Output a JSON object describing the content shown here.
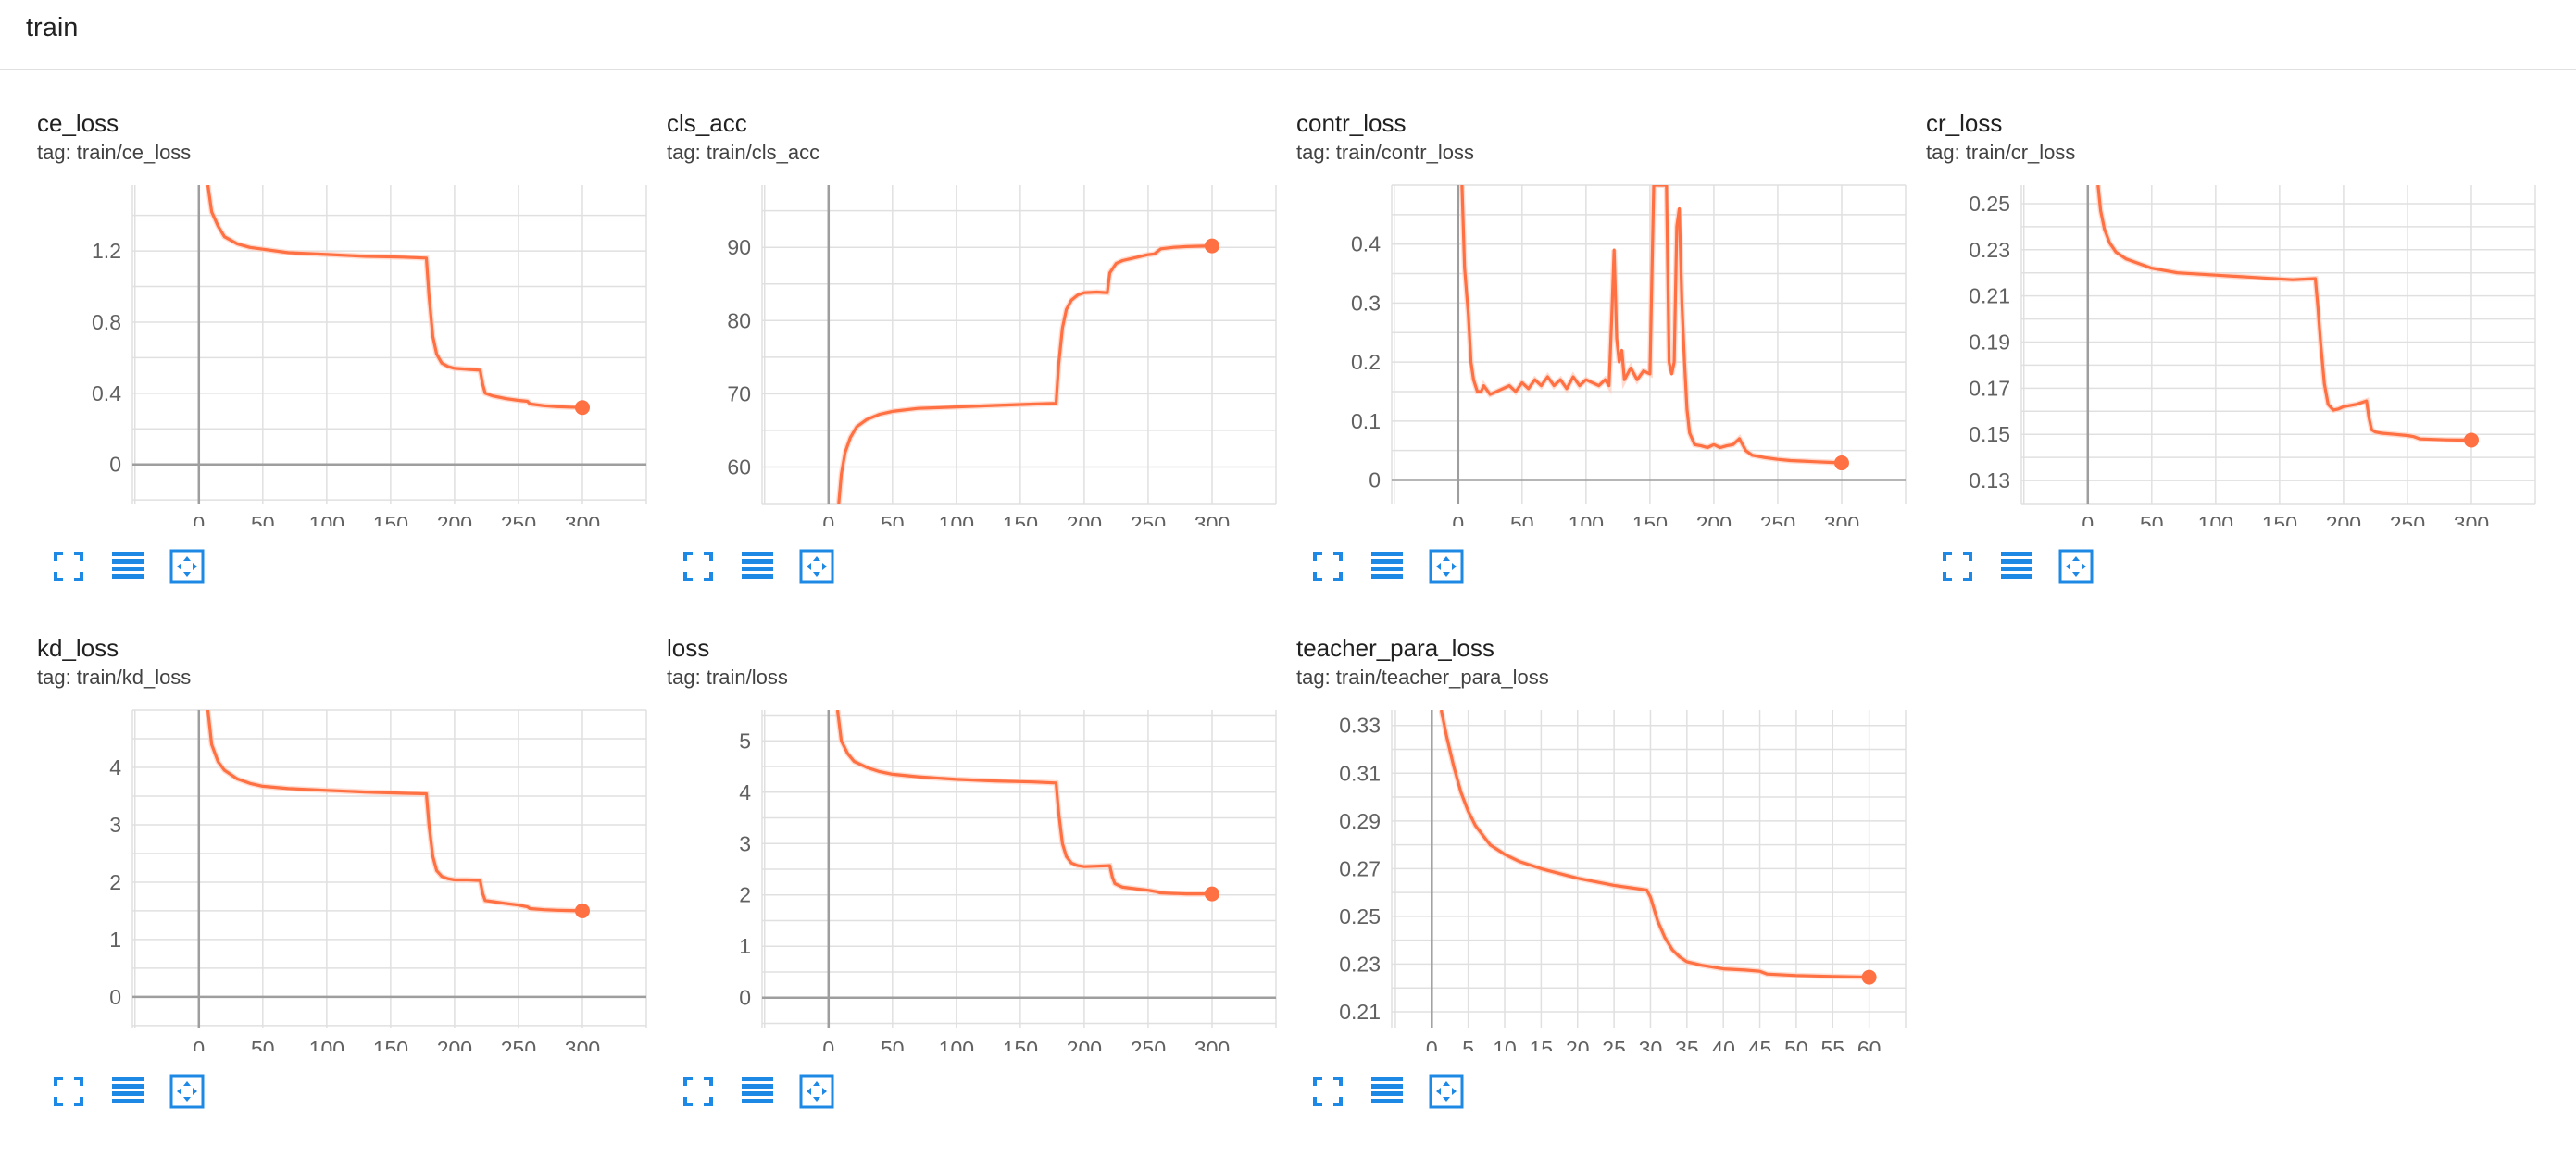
{
  "group": {
    "title": "train"
  },
  "colors": {
    "line": "#ff7043",
    "line_raw": "#ffccbc",
    "grid": "#e0e0e0",
    "axis": "#9e9e9e",
    "icon": "#1e88e5"
  },
  "icons": [
    "fullscreen-icon",
    "toggle-log-icon",
    "fit-domain-icon"
  ],
  "chart_data": [
    {
      "type": "line",
      "title": "ce_loss",
      "tag": "tag: train/ce_loss",
      "xlim": [
        -52,
        350
      ],
      "ylim": [
        -0.22,
        1.57
      ],
      "xticks": [
        0,
        50,
        100,
        150,
        200,
        250,
        300
      ],
      "yticks": [
        0,
        0.4,
        0.8,
        1.2
      ],
      "series": [
        {
          "x": [
            7,
            10,
            15,
            20,
            30,
            40,
            50,
            70,
            100,
            130,
            160,
            178,
            180,
            183,
            186,
            190,
            195,
            200,
            210,
            220,
            222,
            224,
            230,
            240,
            250,
            257,
            259,
            270,
            280,
            290,
            300
          ],
          "y": [
            1.57,
            1.42,
            1.34,
            1.28,
            1.24,
            1.22,
            1.21,
            1.19,
            1.18,
            1.17,
            1.165,
            1.16,
            0.95,
            0.72,
            0.62,
            0.57,
            0.55,
            0.54,
            0.535,
            0.53,
            0.45,
            0.4,
            0.385,
            0.37,
            0.36,
            0.355,
            0.34,
            0.33,
            0.325,
            0.322,
            0.32
          ]
        }
      ]
    },
    {
      "type": "line",
      "title": "cls_acc",
      "tag": "tag: train/cls_acc",
      "xlim": [
        -52,
        350
      ],
      "ylim": [
        55,
        98.5
      ],
      "xticks": [
        0,
        50,
        100,
        150,
        200,
        250,
        300
      ],
      "yticks": [
        60,
        70,
        80,
        90
      ],
      "series": [
        {
          "x": [
            8,
            10,
            13,
            17,
            22,
            30,
            40,
            50,
            70,
            100,
            130,
            160,
            178,
            180,
            183,
            186,
            190,
            195,
            200,
            210,
            218,
            220,
            225,
            230,
            240,
            250,
            255,
            260,
            270,
            280,
            290,
            300
          ],
          "y": [
            55,
            59,
            62,
            64,
            65.5,
            66.5,
            67.2,
            67.6,
            68,
            68.2,
            68.4,
            68.6,
            68.7,
            74,
            79,
            81.5,
            82.8,
            83.5,
            83.8,
            83.9,
            83.8,
            86.5,
            87.8,
            88.2,
            88.6,
            89,
            89.1,
            89.8,
            90,
            90.1,
            90.15,
            90.2
          ]
        }
      ]
    },
    {
      "type": "line",
      "title": "contr_loss",
      "tag": "tag: train/contr_loss",
      "xlim": [
        -52,
        350
      ],
      "ylim": [
        -0.04,
        0.5
      ],
      "xticks": [
        0,
        50,
        100,
        150,
        200,
        250,
        300
      ],
      "yticks": [
        0,
        0.1,
        0.2,
        0.3,
        0.4
      ],
      "series": [
        {
          "x": [
            3,
            5,
            8,
            10,
            12,
            15,
            18,
            20,
            25,
            30,
            35,
            40,
            45,
            50,
            55,
            60,
            65,
            70,
            75,
            80,
            85,
            90,
            95,
            100,
            105,
            110,
            115,
            118,
            120,
            122,
            124,
            126,
            128,
            130,
            135,
            140,
            145,
            150,
            153,
            155,
            157,
            159,
            161,
            163,
            165,
            167,
            169,
            171,
            173,
            175,
            177,
            179,
            181,
            183,
            185,
            190,
            195,
            200,
            205,
            210,
            215,
            220,
            225,
            230,
            240,
            250,
            260,
            270,
            280,
            290,
            300
          ],
          "y": [
            0.5,
            0.36,
            0.28,
            0.2,
            0.17,
            0.15,
            0.15,
            0.16,
            0.145,
            0.15,
            0.155,
            0.16,
            0.15,
            0.165,
            0.155,
            0.17,
            0.16,
            0.175,
            0.16,
            0.17,
            0.155,
            0.175,
            0.16,
            0.17,
            0.165,
            0.16,
            0.17,
            0.16,
            0.27,
            0.39,
            0.24,
            0.2,
            0.22,
            0.17,
            0.19,
            0.17,
            0.185,
            0.18,
            0.5,
            0.5,
            0.5,
            0.5,
            0.5,
            0.5,
            0.2,
            0.18,
            0.2,
            0.43,
            0.46,
            0.3,
            0.2,
            0.12,
            0.08,
            0.07,
            0.06,
            0.058,
            0.055,
            0.06,
            0.055,
            0.058,
            0.06,
            0.07,
            0.05,
            0.042,
            0.038,
            0.035,
            0.033,
            0.032,
            0.031,
            0.03,
            0.029
          ]
        }
      ]
    },
    {
      "type": "line",
      "title": "cr_loss",
      "tag": "tag: train/cr_loss",
      "xlim": [
        -52,
        350
      ],
      "ylim": [
        0.12,
        0.258
      ],
      "xticks": [
        0,
        50,
        100,
        150,
        200,
        250,
        300
      ],
      "yticks": [
        0.13,
        0.15,
        0.17,
        0.19,
        0.21,
        0.23,
        0.25
      ],
      "series": [
        {
          "x": [
            8,
            10,
            13,
            17,
            22,
            30,
            40,
            50,
            70,
            100,
            130,
            160,
            178,
            180,
            182,
            185,
            188,
            192,
            196,
            200,
            210,
            218,
            220,
            222,
            225,
            230,
            240,
            250,
            255,
            260,
            270,
            280,
            290,
            300
          ],
          "y": [
            0.258,
            0.247,
            0.239,
            0.233,
            0.229,
            0.226,
            0.224,
            0.222,
            0.22,
            0.219,
            0.218,
            0.217,
            0.2175,
            0.205,
            0.19,
            0.172,
            0.163,
            0.1605,
            0.161,
            0.162,
            0.163,
            0.1645,
            0.157,
            0.152,
            0.151,
            0.1505,
            0.15,
            0.1495,
            0.149,
            0.148,
            0.1478,
            0.1476,
            0.1475,
            0.1475
          ]
        }
      ]
    },
    {
      "type": "line",
      "title": "kd_loss",
      "tag": "tag: train/kd_loss",
      "xlim": [
        -52,
        350
      ],
      "ylim": [
        -0.55,
        5.0
      ],
      "xticks": [
        0,
        50,
        100,
        150,
        200,
        250,
        300
      ],
      "yticks": [
        0,
        1,
        2,
        3,
        4
      ],
      "series": [
        {
          "x": [
            7,
            10,
            15,
            20,
            30,
            40,
            50,
            70,
            100,
            130,
            160,
            178,
            180,
            183,
            186,
            190,
            195,
            200,
            210,
            220,
            222,
            224,
            230,
            240,
            250,
            257,
            259,
            270,
            280,
            290,
            300
          ],
          "y": [
            5.0,
            4.4,
            4.1,
            3.95,
            3.8,
            3.72,
            3.67,
            3.63,
            3.6,
            3.57,
            3.55,
            3.54,
            3.0,
            2.45,
            2.2,
            2.1,
            2.06,
            2.04,
            2.04,
            2.03,
            1.8,
            1.68,
            1.66,
            1.63,
            1.6,
            1.57,
            1.54,
            1.52,
            1.51,
            1.505,
            1.5
          ]
        }
      ]
    },
    {
      "type": "line",
      "title": "loss",
      "tag": "tag: train/loss",
      "xlim": [
        -52,
        350
      ],
      "ylim": [
        -0.6,
        5.6
      ],
      "xticks": [
        0,
        50,
        100,
        150,
        200,
        250,
        300
      ],
      "yticks": [
        0,
        1,
        2,
        3,
        4,
        5
      ],
      "series": [
        {
          "x": [
            7,
            10,
            15,
            20,
            30,
            40,
            50,
            70,
            100,
            130,
            160,
            178,
            180,
            183,
            186,
            190,
            195,
            200,
            210,
            220,
            222,
            224,
            230,
            240,
            250,
            257,
            259,
            270,
            280,
            290,
            300
          ],
          "y": [
            5.6,
            5.0,
            4.75,
            4.6,
            4.48,
            4.4,
            4.35,
            4.3,
            4.25,
            4.22,
            4.2,
            4.18,
            3.6,
            3.0,
            2.75,
            2.62,
            2.57,
            2.55,
            2.56,
            2.57,
            2.35,
            2.22,
            2.15,
            2.12,
            2.09,
            2.06,
            2.04,
            2.03,
            2.02,
            2.02,
            2.02
          ]
        }
      ]
    },
    {
      "type": "line",
      "title": "teacher_para_loss",
      "tag": "tag: train/teacher_para_loss",
      "xlim": [
        -5.5,
        65
      ],
      "ylim": [
        0.203,
        0.3365
      ],
      "xticks": [
        0,
        5,
        10,
        15,
        20,
        25,
        30,
        35,
        40,
        45,
        50,
        55,
        60
      ],
      "yticks": [
        0.21,
        0.23,
        0.25,
        0.27,
        0.29,
        0.31,
        0.33
      ],
      "series": [
        {
          "x": [
            1.3,
            2,
            3,
            4,
            5,
            6,
            7,
            8,
            10,
            12,
            15,
            20,
            25,
            29.5,
            30,
            31,
            32,
            33,
            34,
            35,
            37,
            40,
            43,
            45,
            46,
            50,
            55,
            60
          ],
          "y": [
            0.3365,
            0.326,
            0.313,
            0.302,
            0.294,
            0.288,
            0.284,
            0.28,
            0.276,
            0.273,
            0.27,
            0.266,
            0.263,
            0.261,
            0.258,
            0.248,
            0.241,
            0.236,
            0.233,
            0.231,
            0.2295,
            0.228,
            0.2275,
            0.227,
            0.2258,
            0.2252,
            0.2248,
            0.2245
          ]
        }
      ]
    }
  ]
}
